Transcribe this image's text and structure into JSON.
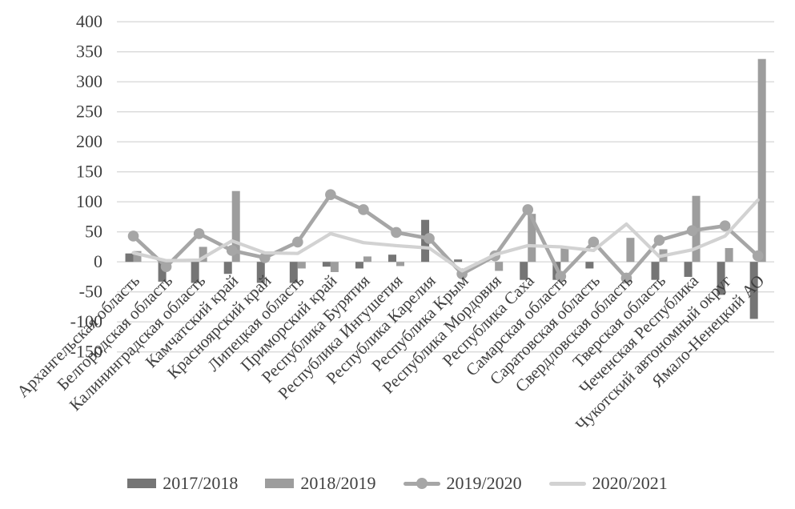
{
  "chart_data": {
    "type": "combo",
    "title": "",
    "xlabel": "",
    "ylabel": "",
    "ylim": [
      -150,
      400
    ],
    "ytick_step": 50,
    "y_ticks": [
      400,
      350,
      300,
      250,
      200,
      150,
      100,
      50,
      0,
      -50,
      -100,
      -150
    ],
    "grid": true,
    "legend_position": "bottom",
    "categories": [
      "Архангельская область",
      "Белгородская область",
      "Калининградская область",
      "Камчатский край",
      "Красноярский край",
      "Липецкая область",
      "Приморский край",
      "Республика Бурятия",
      "Республика Ингушетия",
      "Республика Карелия",
      "Республика Крым",
      "Республика Мордовия",
      "Республика Саха",
      "Самарская область",
      "Саратовская область",
      "Свердловская область",
      "Тверская область",
      "Чеченская Республика",
      "Чукотский автономный округ",
      "Ямало-Ненецкий АО"
    ],
    "series": [
      {
        "name": "2017/2018",
        "type": "bar",
        "color": "#757575",
        "values": [
          14,
          -33,
          -35,
          -20,
          -35,
          -35,
          -8,
          -11,
          12,
          70,
          4,
          0,
          -30,
          -30,
          -11,
          0,
          -30,
          -25,
          -55,
          -95
        ]
      },
      {
        "name": "2018/2019",
        "type": "bar",
        "color": "#9d9d9d",
        "values": [
          18,
          0,
          25,
          118,
          0,
          -11,
          -17,
          9,
          -7,
          0,
          0,
          -15,
          80,
          25,
          0,
          40,
          21,
          110,
          23,
          338
        ]
      },
      {
        "name": "2019/2020",
        "type": "line",
        "marker": true,
        "color": "#a6a6a6",
        "values": [
          43,
          -8,
          47,
          19,
          7,
          33,
          112,
          87,
          49,
          39,
          -20,
          10,
          87,
          -24,
          33,
          -27,
          36,
          52,
          60,
          10
        ]
      },
      {
        "name": "2020/2021",
        "type": "line",
        "marker": false,
        "color": "#d2d2d2",
        "values": [
          15,
          2,
          3,
          35,
          15,
          14,
          47,
          32,
          27,
          23,
          -15,
          12,
          27,
          25,
          19,
          63,
          9,
          20,
          43,
          103
        ]
      }
    ],
    "grid_color": "#d9d9d9",
    "text_color": "#404040"
  }
}
